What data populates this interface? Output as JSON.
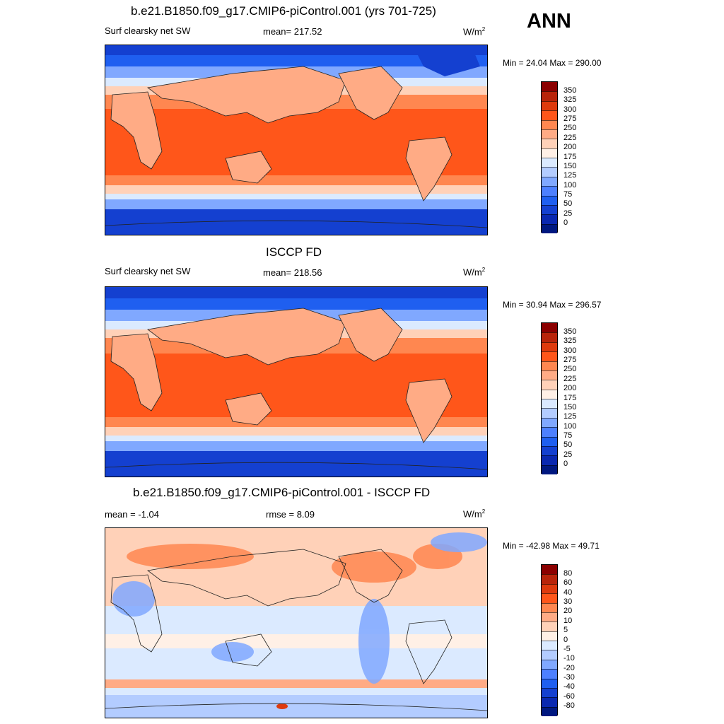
{
  "season": "ANN",
  "panels": [
    {
      "title": "b.e21.B1850.f09_g17.CMIP6-piControl.001 (yrs 701-725)",
      "left_label": "Surf clearsky net SW",
      "center_label": "mean= 217.52",
      "units": "W/m",
      "units_sup": "2",
      "minmax": "Min =  24.04 Max = 290.00",
      "colorbar": {
        "labels": [
          "350",
          "325",
          "300",
          "275",
          "250",
          "225",
          "200",
          "175",
          "150",
          "125",
          "100",
          "75",
          "50",
          "25",
          "0"
        ],
        "colors": [
          "#8b0000",
          "#b8240a",
          "#de3a0d",
          "#ff561a",
          "#ff8750",
          "#ffab85",
          "#ffd1b8",
          "#fff0e6",
          "#dbeaff",
          "#b3ccff",
          "#80a8ff",
          "#4d80ff",
          "#1f5ff0",
          "#1440d0",
          "#0a28b0",
          "#001880"
        ]
      }
    },
    {
      "title": "ISCCP FD",
      "left_label": "Surf clearsky net SW",
      "center_label": "mean= 218.56",
      "units": "W/m",
      "units_sup": "2",
      "minmax": "Min =  30.94 Max = 296.57",
      "colorbar": {
        "labels": [
          "350",
          "325",
          "300",
          "275",
          "250",
          "225",
          "200",
          "175",
          "150",
          "125",
          "100",
          "75",
          "50",
          "25",
          "0"
        ],
        "colors": [
          "#8b0000",
          "#b8240a",
          "#de3a0d",
          "#ff561a",
          "#ff8750",
          "#ffab85",
          "#ffd1b8",
          "#fff0e6",
          "#dbeaff",
          "#b3ccff",
          "#80a8ff",
          "#4d80ff",
          "#1f5ff0",
          "#1440d0",
          "#0a28b0",
          "#001880"
        ]
      }
    },
    {
      "title": "b.e21.B1850.f09_g17.CMIP6-piControl.001 - ISCCP FD",
      "left_label": "mean =  -1.04",
      "center_label": "rmse =   8.09",
      "units": "W/m",
      "units_sup": "2",
      "minmax": "Min = -42.98 Max =  49.71",
      "colorbar": {
        "labels": [
          "80",
          "60",
          "40",
          "30",
          "20",
          "10",
          "5",
          "0",
          "-5",
          "-10",
          "-20",
          "-30",
          "-40",
          "-60",
          "-80"
        ],
        "colors": [
          "#8b0000",
          "#b8240a",
          "#de3a0d",
          "#ff561a",
          "#ff8750",
          "#ffab85",
          "#ffd1b8",
          "#fff0e6",
          "#dbeaff",
          "#b3ccff",
          "#80a8ff",
          "#4d80ff",
          "#1f5ff0",
          "#1440d0",
          "#0a28b0",
          "#001880"
        ]
      }
    }
  ]
}
